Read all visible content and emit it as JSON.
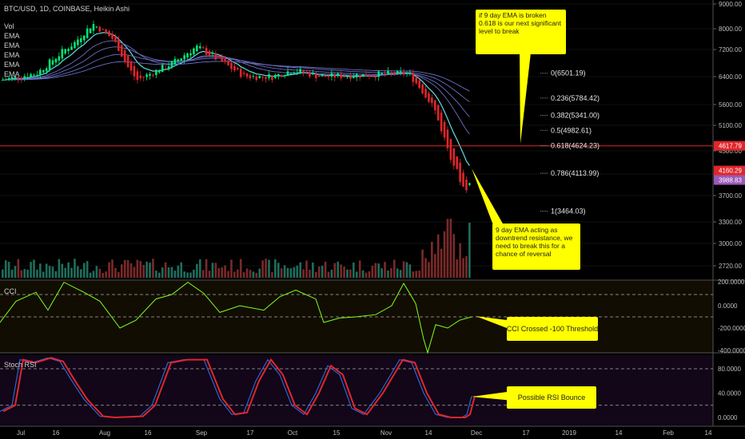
{
  "header": {
    "symbol_line": "BTC/USD, 1D, COINBASE, Heikin Ashi",
    "indicators": [
      "Vol",
      "EMA",
      "EMA",
      "EMA",
      "EMA",
      "EMA"
    ]
  },
  "price_axis": {
    "ticks": [
      "9000.00",
      "8000.00",
      "7200.00",
      "6400.00",
      "5600.00",
      "5100.00",
      "4500.00",
      "4100.00",
      "3700.00",
      "3300.00",
      "3000.00",
      "2720.00"
    ],
    "tick_values": [
      9000,
      8000,
      7200,
      6400,
      5600,
      5100,
      4500,
      4100,
      3700,
      3300,
      3000,
      2720
    ],
    "labels": [
      {
        "text": "4617.79",
        "value": 4617.79,
        "color": "#e0262b"
      },
      {
        "text": "4160.29",
        "value": 4160.29,
        "color": "#e0262b"
      },
      {
        "text": "3988.83",
        "value": 3988.83,
        "color": "#9b59b6"
      }
    ]
  },
  "fib_levels": [
    {
      "text": "0(6501.19)",
      "value": 6501.19
    },
    {
      "text": "0.236(5784.42)",
      "value": 5784.42
    },
    {
      "text": "0.382(5341.00)",
      "value": 5341.0
    },
    {
      "text": "0.5(4982.61)",
      "value": 4982.61
    },
    {
      "text": "0.618(4624.23)",
      "value": 4624.23
    },
    {
      "text": "0.786(4113.99)",
      "value": 4113.99
    },
    {
      "text": "1(3464.03)",
      "value": 3464.03
    }
  ],
  "x_axis": {
    "ticks": [
      "Jul",
      "16",
      "Aug",
      "16",
      "Sep",
      "17",
      "Oct",
      "15",
      "Nov",
      "14",
      "Dec",
      "17",
      "2019",
      "14",
      "Feb",
      "14"
    ]
  },
  "cci": {
    "label": "CCI",
    "ticks": [
      "200.0000",
      "0.0000",
      "-200.0000",
      "-400.0000"
    ],
    "tick_values": [
      200,
      0,
      -200,
      -400
    ]
  },
  "stoch": {
    "label": "Stoch RSI",
    "ticks": [
      "80.0000",
      "40.0000",
      "0.0000"
    ],
    "tick_values": [
      80,
      40,
      0
    ]
  },
  "annotations": {
    "top": "if 9 day EMA is broken 0.618 is our next significant level to break",
    "mid": "9 day EMA acting as downtrend resistance, we need to break this for a chance of reversal",
    "cci": "CCI Crossed -100 Threshold",
    "rsi": "Possible RSI Bounce"
  },
  "colors": {
    "up": "#00e676",
    "down": "#e0262b",
    "ema9": "#5ee0e6",
    "ema_other": "#6a6fc4",
    "cci_line": "#7fff1f",
    "rsi_k": "#2f6be0",
    "rsi_d": "#e0262b",
    "note_bg": "#ffff00"
  },
  "chart_data": {
    "type": "candlestick",
    "title": "BTC/USD, 1D, COINBASE, Heikin Ashi",
    "x_axis_ticks": [
      "Jul",
      "16",
      "Aug",
      "16",
      "Sep",
      "17",
      "Oct",
      "15",
      "Nov",
      "14",
      "Dec",
      "17",
      "2019",
      "14",
      "Feb",
      "14"
    ],
    "price_trend_keypoints": [
      {
        "date": "Jul 1",
        "close": 6300
      },
      {
        "date": "Jul 10",
        "close": 6500
      },
      {
        "date": "Jul 20",
        "close": 7400
      },
      {
        "date": "Jul 27",
        "close": 8200
      },
      {
        "date": "Aug 3",
        "close": 7600
      },
      {
        "date": "Aug 10",
        "close": 6700
      },
      {
        "date": "Aug 14",
        "close": 6300
      },
      {
        "date": "Aug 25",
        "close": 6800
      },
      {
        "date": "Sep 4",
        "close": 7300
      },
      {
        "date": "Sep 8",
        "close": 6400
      },
      {
        "date": "Sep 20",
        "close": 6400
      },
      {
        "date": "Oct 10",
        "close": 6600
      },
      {
        "date": "Oct 15",
        "close": 6400
      },
      {
        "date": "Nov 6",
        "close": 6500
      },
      {
        "date": "Nov 14",
        "close": 5600
      },
      {
        "date": "Nov 20",
        "close": 4500
      },
      {
        "date": "Nov 25",
        "close": 3800
      },
      {
        "date": "Nov 28",
        "close": 3990
      }
    ],
    "ylim": [
      2600,
      9200
    ],
    "cci_range": [
      -420,
      220
    ],
    "stoch_rsi_range": [
      -5,
      100
    ]
  }
}
